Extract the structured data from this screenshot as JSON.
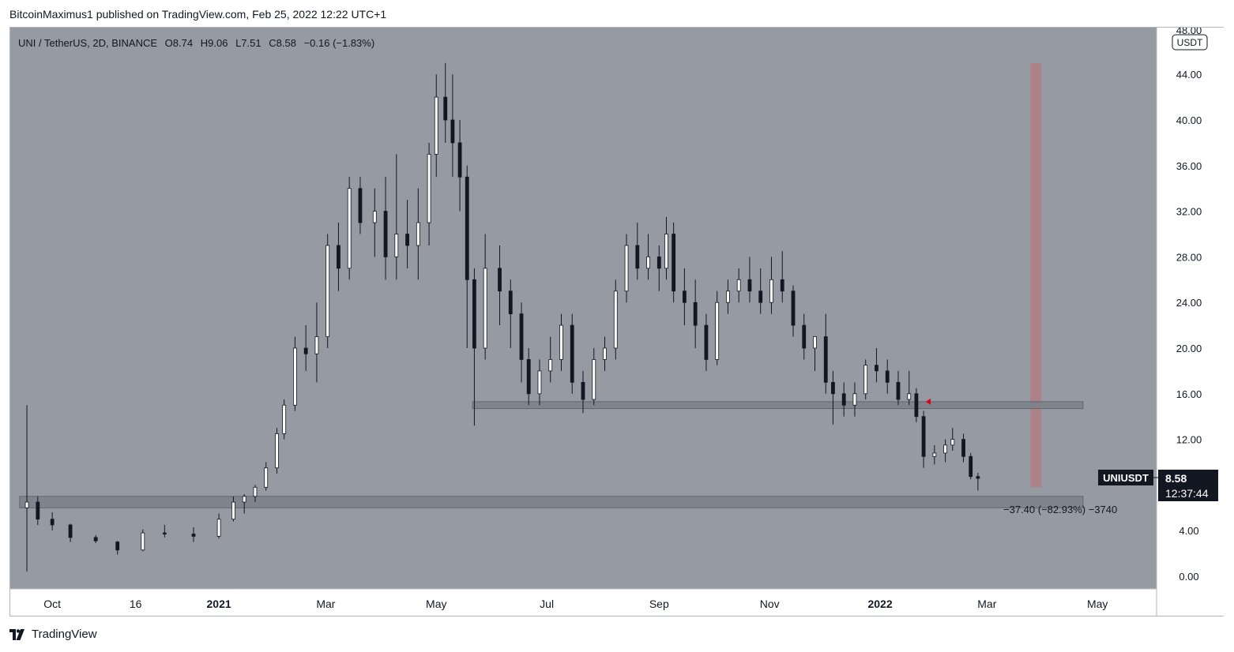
{
  "header": {
    "published_line": "BitcoinMaximus1 published on TradingView.com, Feb 25, 2022 12:22 UTC+1"
  },
  "legend": {
    "symbol_line": "UNI / TetherUS, 2D, BINANCE",
    "o_label": "O",
    "o_value": "8.74",
    "h_label": "H",
    "h_value": "9.06",
    "l_label": "L",
    "l_value": "7.51",
    "c_label": "C",
    "c_value": "8.58",
    "change": "−0.16 (−1.83%)"
  },
  "price_scale": {
    "currency": "USDT",
    "top_partial_label": "48.00"
  },
  "price_badge": {
    "symbol": "UNIUSDT",
    "price": "8.58",
    "countdown": "12:37:44"
  },
  "measure_label": "−37.40 (−82.93%) −3740",
  "footer": {
    "brand": "TradingView"
  },
  "colors": {
    "background": "#959aa3",
    "candle": "#131722",
    "red_band": "#b27c84",
    "zone": "#7d828b",
    "arrow": "#e0001b"
  },
  "chart_data": {
    "type": "candlestick",
    "y_range": [
      0,
      48
    ],
    "y_ticks": [
      "0.00",
      "4.00",
      "8.00",
      "12.00",
      "16.00",
      "20.00",
      "24.00",
      "28.00",
      "32.00",
      "36.00",
      "40.00",
      "44.00"
    ],
    "x_ticks": [
      "Oct",
      "16",
      "2021",
      "Mar",
      "May",
      "Jul",
      "Sep",
      "Nov",
      "2022",
      "Mar",
      "May"
    ],
    "x_tick_bold": [
      false,
      false,
      true,
      false,
      false,
      false,
      false,
      false,
      true,
      false,
      false
    ],
    "x_tick_dates": [
      "2020-10-01",
      "2020-11-16",
      "2021-01-01",
      "2021-03-01",
      "2021-05-01",
      "2021-07-01",
      "2021-09-01",
      "2021-11-01",
      "2022-01-01",
      "2022-03-01",
      "2022-05-01"
    ],
    "x_range": [
      "2020-09-10",
      "2022-05-31"
    ],
    "candles": [
      {
        "date": "2020-09-17",
        "o": 6,
        "h": 15,
        "l": 0.4,
        "c": 6.5
      },
      {
        "date": "2020-09-23",
        "o": 6.5,
        "h": 7,
        "l": 4.5,
        "c": 5
      },
      {
        "date": "2020-10-01",
        "o": 5,
        "h": 5.6,
        "l": 4,
        "c": 4.5
      },
      {
        "date": "2020-10-11",
        "o": 4.5,
        "h": 4.6,
        "l": 3,
        "c": 3.4
      },
      {
        "date": "2020-10-25",
        "o": 3.4,
        "h": 3.6,
        "l": 2.9,
        "c": 3.1
      },
      {
        "date": "2020-11-06",
        "o": 3,
        "h": 3.1,
        "l": 1.9,
        "c": 2.3
      },
      {
        "date": "2020-11-20",
        "o": 2.3,
        "h": 4.1,
        "l": 2.2,
        "c": 3.8
      },
      {
        "date": "2020-12-02",
        "o": 3.8,
        "h": 4.5,
        "l": 3.4,
        "c": 3.7
      },
      {
        "date": "2020-12-18",
        "o": 3.7,
        "h": 4.3,
        "l": 3,
        "c": 3.5
      },
      {
        "date": "2021-01-01",
        "o": 3.5,
        "h": 5.5,
        "l": 3.3,
        "c": 5
      },
      {
        "date": "2021-01-09",
        "o": 5,
        "h": 7,
        "l": 4.8,
        "c": 6.5
      },
      {
        "date": "2021-01-15",
        "o": 6.5,
        "h": 7.2,
        "l": 5.5,
        "c": 7
      },
      {
        "date": "2021-01-21",
        "o": 7,
        "h": 8,
        "l": 6.5,
        "c": 7.8
      },
      {
        "date": "2021-01-27",
        "o": 7.8,
        "h": 10,
        "l": 7.5,
        "c": 9.5
      },
      {
        "date": "2021-02-02",
        "o": 9.5,
        "h": 13,
        "l": 9,
        "c": 12.5
      },
      {
        "date": "2021-02-06",
        "o": 12.5,
        "h": 15.5,
        "l": 12,
        "c": 15
      },
      {
        "date": "2021-02-12",
        "o": 15,
        "h": 21,
        "l": 14.5,
        "c": 20
      },
      {
        "date": "2021-02-18",
        "o": 20,
        "h": 22,
        "l": 18,
        "c": 19.5
      },
      {
        "date": "2021-02-24",
        "o": 19.5,
        "h": 24,
        "l": 17,
        "c": 21
      },
      {
        "date": "2021-03-02",
        "o": 21,
        "h": 30,
        "l": 20,
        "c": 29
      },
      {
        "date": "2021-03-08",
        "o": 29,
        "h": 31,
        "l": 25,
        "c": 27
      },
      {
        "date": "2021-03-14",
        "o": 27,
        "h": 35,
        "l": 26,
        "c": 34
      },
      {
        "date": "2021-03-20",
        "o": 34,
        "h": 35,
        "l": 30,
        "c": 31
      },
      {
        "date": "2021-03-28",
        "o": 31,
        "h": 34,
        "l": 28,
        "c": 32
      },
      {
        "date": "2021-04-03",
        "o": 32,
        "h": 35,
        "l": 26,
        "c": 28
      },
      {
        "date": "2021-04-09",
        "o": 28,
        "h": 37,
        "l": 26,
        "c": 30
      },
      {
        "date": "2021-04-15",
        "o": 30,
        "h": 33,
        "l": 27,
        "c": 29
      },
      {
        "date": "2021-04-21",
        "o": 29,
        "h": 34,
        "l": 26,
        "c": 31
      },
      {
        "date": "2021-04-27",
        "o": 31,
        "h": 38,
        "l": 29,
        "c": 37
      },
      {
        "date": "2021-04-31",
        "o": 37,
        "h": 44,
        "l": 35,
        "c": 42
      },
      {
        "date": "2021-05-06",
        "o": 42,
        "h": 45,
        "l": 38,
        "c": 40
      },
      {
        "date": "2021-05-10",
        "o": 40,
        "h": 44,
        "l": 35,
        "c": 38
      },
      {
        "date": "2021-05-14",
        "o": 38,
        "h": 40,
        "l": 32,
        "c": 35
      },
      {
        "date": "2021-05-18",
        "o": 35,
        "h": 36,
        "l": 20,
        "c": 26
      },
      {
        "date": "2021-05-22",
        "o": 26,
        "h": 27,
        "l": 13.2,
        "c": 20
      },
      {
        "date": "2021-05-28",
        "o": 20,
        "h": 30,
        "l": 19,
        "c": 27
      },
      {
        "date": "2021-06-05",
        "o": 27,
        "h": 29,
        "l": 22,
        "c": 25
      },
      {
        "date": "2021-06-11",
        "o": 25,
        "h": 26,
        "l": 20,
        "c": 23
      },
      {
        "date": "2021-06-17",
        "o": 23,
        "h": 24,
        "l": 17,
        "c": 19
      },
      {
        "date": "2021-06-21",
        "o": 19,
        "h": 20,
        "l": 15,
        "c": 16
      },
      {
        "date": "2021-06-27",
        "o": 16,
        "h": 19,
        "l": 15,
        "c": 18
      },
      {
        "date": "2021-07-03",
        "o": 18,
        "h": 21,
        "l": 17,
        "c": 19
      },
      {
        "date": "2021-07-09",
        "o": 19,
        "h": 23,
        "l": 18,
        "c": 22
      },
      {
        "date": "2021-07-15",
        "o": 22,
        "h": 23,
        "l": 16,
        "c": 17
      },
      {
        "date": "2021-07-21",
        "o": 17,
        "h": 18,
        "l": 14.3,
        "c": 15.5
      },
      {
        "date": "2021-07-27",
        "o": 15.5,
        "h": 20,
        "l": 15,
        "c": 19
      },
      {
        "date": "2021-08-02",
        "o": 19,
        "h": 21,
        "l": 18,
        "c": 20
      },
      {
        "date": "2021-08-08",
        "o": 20,
        "h": 26,
        "l": 19,
        "c": 25
      },
      {
        "date": "2021-08-14",
        "o": 25,
        "h": 30,
        "l": 24,
        "c": 29
      },
      {
        "date": "2021-08-20",
        "o": 29,
        "h": 31,
        "l": 26,
        "c": 27
      },
      {
        "date": "2021-08-26",
        "o": 27,
        "h": 30,
        "l": 26,
        "c": 28
      },
      {
        "date": "2021-09-01",
        "o": 28,
        "h": 29,
        "l": 25,
        "c": 27
      },
      {
        "date": "2021-09-05",
        "o": 27,
        "h": 31.5,
        "l": 26,
        "c": 30
      },
      {
        "date": "2021-09-09",
        "o": 30,
        "h": 31,
        "l": 24,
        "c": 25
      },
      {
        "date": "2021-09-15",
        "o": 25,
        "h": 27,
        "l": 22,
        "c": 24
      },
      {
        "date": "2021-09-21",
        "o": 24,
        "h": 26,
        "l": 20,
        "c": 22
      },
      {
        "date": "2021-09-27",
        "o": 22,
        "h": 23,
        "l": 18,
        "c": 19
      },
      {
        "date": "2021-10-03",
        "o": 19,
        "h": 25,
        "l": 18.5,
        "c": 24
      },
      {
        "date": "2021-10-09",
        "o": 24,
        "h": 26,
        "l": 23,
        "c": 25
      },
      {
        "date": "2021-10-15",
        "o": 25,
        "h": 27,
        "l": 24,
        "c": 26
      },
      {
        "date": "2021-10-21",
        "o": 26,
        "h": 28,
        "l": 24,
        "c": 25
      },
      {
        "date": "2021-10-27",
        "o": 25,
        "h": 27,
        "l": 23,
        "c": 24
      },
      {
        "date": "2021-11-02",
        "o": 24,
        "h": 28,
        "l": 23,
        "c": 26
      },
      {
        "date": "2021-11-08",
        "o": 26,
        "h": 28.5,
        "l": 24,
        "c": 25
      },
      {
        "date": "2021-11-14",
        "o": 25,
        "h": 25.5,
        "l": 21,
        "c": 22
      },
      {
        "date": "2021-11-20",
        "o": 22,
        "h": 23,
        "l": 19,
        "c": 20
      },
      {
        "date": "2021-11-26",
        "o": 20,
        "h": 21,
        "l": 18,
        "c": 21
      },
      {
        "date": "2021-12-02",
        "o": 21,
        "h": 23,
        "l": 16,
        "c": 17
      },
      {
        "date": "2021-12-06",
        "o": 17,
        "h": 18,
        "l": 13.3,
        "c": 16
      },
      {
        "date": "2021-12-12",
        "o": 16,
        "h": 17,
        "l": 14,
        "c": 15
      },
      {
        "date": "2021-12-18",
        "o": 15,
        "h": 17,
        "l": 14,
        "c": 16
      },
      {
        "date": "2021-12-24",
        "o": 16,
        "h": 19,
        "l": 15.5,
        "c": 18.5
      },
      {
        "date": "2021-12-30",
        "o": 18.5,
        "h": 20,
        "l": 17,
        "c": 18
      },
      {
        "date": "2022-01-05",
        "o": 18,
        "h": 19,
        "l": 16,
        "c": 17
      },
      {
        "date": "2022-01-11",
        "o": 17,
        "h": 18,
        "l": 15,
        "c": 15.5
      },
      {
        "date": "2022-01-17",
        "o": 15.5,
        "h": 18,
        "l": 15,
        "c": 16
      },
      {
        "date": "2022-01-21",
        "o": 16,
        "h": 16.5,
        "l": 13.5,
        "c": 14
      },
      {
        "date": "2022-01-25",
        "o": 14,
        "h": 14.5,
        "l": 9.5,
        "c": 10.5
      },
      {
        "date": "2022-01-31",
        "o": 10.5,
        "h": 11.5,
        "l": 9.8,
        "c": 10.8
      },
      {
        "date": "2022-02-06",
        "o": 10.8,
        "h": 12,
        "l": 10,
        "c": 11.5
      },
      {
        "date": "2022-02-10",
        "o": 11.5,
        "h": 13,
        "l": 11,
        "c": 12
      },
      {
        "date": "2022-02-16",
        "o": 12,
        "h": 12.5,
        "l": 10,
        "c": 10.5
      },
      {
        "date": "2022-02-20",
        "o": 10.5,
        "h": 10.8,
        "l": 8.5,
        "c": 8.74
      },
      {
        "date": "2022-02-24",
        "o": 8.74,
        "h": 9.06,
        "l": 7.51,
        "c": 8.58
      }
    ],
    "support_zone": {
      "low": 6.0,
      "high": 7.0,
      "start": "2020-09-13",
      "end": "2022-04-23"
    },
    "resistance_zone": {
      "low": 14.7,
      "high": 15.3,
      "start": "2021-05-21",
      "end": "2022-04-23"
    },
    "projection_band": {
      "start": "2022-03-25",
      "end": "2022-03-31",
      "low": 7.8,
      "high": 45
    },
    "resistance_arrow": {
      "date": "2022-01-28",
      "price": 15.3
    }
  }
}
